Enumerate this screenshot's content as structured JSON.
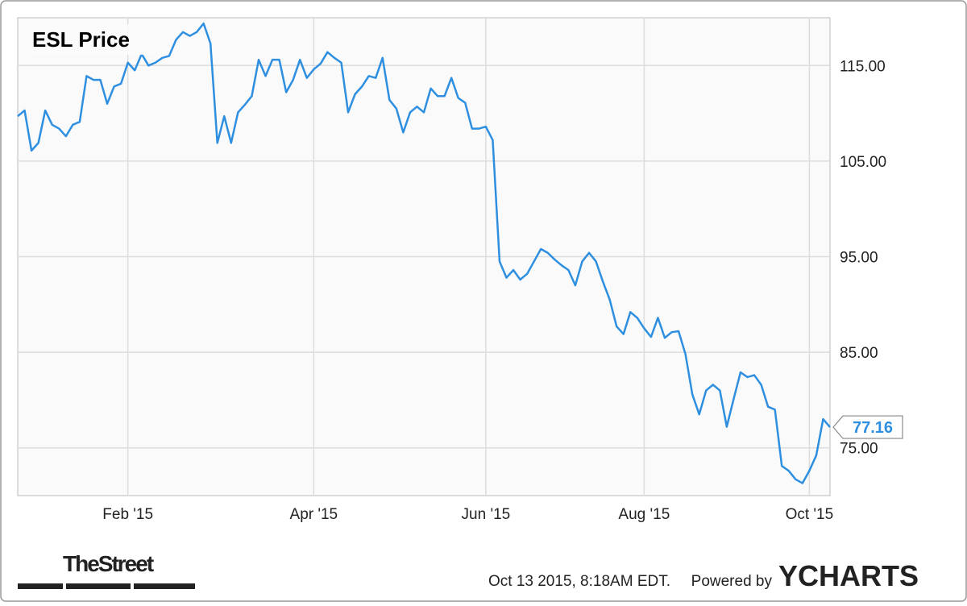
{
  "chart_data": {
    "type": "line",
    "title": "ESL Price",
    "series": [
      {
        "name": "ESL Price",
        "color": "#2e8fe0",
        "values": [
          109.7,
          110.3,
          106.1,
          106.9,
          110.3,
          108.8,
          108.4,
          107.6,
          108.8,
          109.1,
          113.9,
          113.5,
          113.5,
          111.0,
          112.8,
          113.1,
          115.3,
          114.5,
          116.2,
          115.0,
          115.3,
          115.8,
          116.0,
          117.7,
          118.5,
          118.1,
          118.5,
          119.4,
          117.3,
          106.9,
          109.7,
          106.9,
          110.1,
          110.9,
          111.8,
          115.6,
          113.9,
          115.6,
          115.6,
          112.2,
          113.5,
          115.6,
          113.7,
          114.6,
          115.2,
          116.4,
          115.8,
          115.3,
          110.1,
          112.0,
          112.8,
          113.9,
          113.7,
          115.8,
          111.4,
          110.5,
          108.0,
          110.1,
          110.7,
          110.1,
          112.6,
          111.8,
          111.8,
          113.7,
          111.6,
          111.1,
          108.4,
          108.4,
          108.6,
          107.2,
          94.5,
          92.8,
          93.6,
          92.6,
          93.2,
          94.5,
          95.8,
          95.4,
          94.7,
          94.1,
          93.6,
          92.0,
          94.5,
          95.4,
          94.5,
          92.4,
          90.5,
          87.7,
          86.9,
          89.2,
          88.6,
          87.5,
          86.6,
          88.6,
          86.5,
          87.1,
          87.2,
          84.8,
          80.6,
          78.5,
          81.0,
          81.6,
          81.0,
          77.2,
          80.1,
          82.9,
          82.4,
          82.6,
          81.6,
          79.3,
          79.0,
          73.1,
          72.6,
          71.7,
          71.3,
          72.6,
          74.2,
          78.0,
          77.16
        ]
      }
    ],
    "last_value": 77.16,
    "xlim": [
      0,
      118
    ],
    "xticks": [
      {
        "value": 16,
        "label": "Feb '15"
      },
      {
        "value": 43,
        "label": "Apr '15"
      },
      {
        "value": 68,
        "label": "Jun '15"
      },
      {
        "value": 91,
        "label": "Aug '15"
      },
      {
        "value": 115,
        "label": "Oct '15"
      }
    ],
    "ylim": [
      70,
      120
    ],
    "yticks": [
      {
        "value": 75,
        "label": "75.00"
      },
      {
        "value": 85,
        "label": "85.00"
      },
      {
        "value": 95,
        "label": "95.00"
      },
      {
        "value": 105,
        "label": "105.00"
      },
      {
        "value": 115,
        "label": "115.00"
      }
    ],
    "grid": true
  },
  "footer": {
    "source": "TheStreet",
    "timestamp": "Oct 13 2015, 8:18AM EDT.",
    "powered_by": "Powered by",
    "brand": "YCHARTS"
  }
}
